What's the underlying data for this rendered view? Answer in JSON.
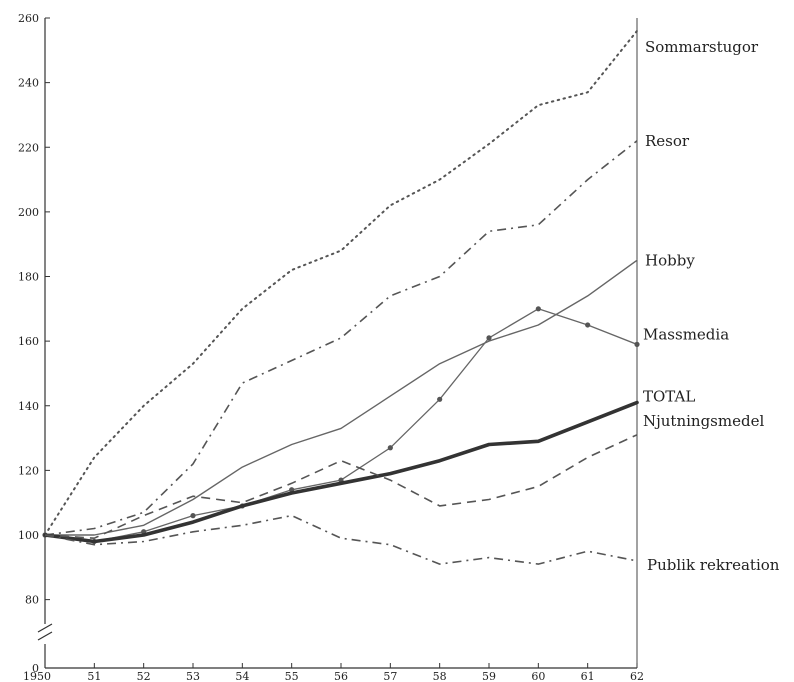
{
  "chart_data": {
    "type": "line",
    "title": "",
    "xlabel": "",
    "ylabel": "",
    "x": [
      1950,
      1951,
      1952,
      1953,
      1954,
      1955,
      1956,
      1957,
      1958,
      1959,
      1960,
      1961,
      1962
    ],
    "x_tick_labels": [
      "1950",
      "51",
      "52",
      "53",
      "54",
      "55",
      "56",
      "57",
      "58",
      "59",
      "60",
      "61",
      "62"
    ],
    "y_ticks": [
      0,
      80,
      100,
      120,
      140,
      160,
      180,
      200,
      220,
      240,
      260
    ],
    "y_tick_labels": [
      "0",
      "80",
      "100",
      "120",
      "140",
      "160",
      "180",
      "200",
      "220",
      "240",
      "260"
    ],
    "ylim": [
      0,
      260
    ],
    "axis_break": "between 0 and 80",
    "grid": false,
    "legend": "labels at right end of lines",
    "series": [
      {
        "name": "Sommarstugor",
        "style": "dotted",
        "values": [
          100,
          124,
          140,
          153,
          170,
          182,
          188,
          202,
          210,
          221,
          233,
          237,
          256
        ]
      },
      {
        "name": "Resor",
        "style": "dash-dot",
        "values": [
          100,
          102,
          107,
          122,
          147,
          154,
          161,
          174,
          180,
          194,
          196,
          210,
          222
        ]
      },
      {
        "name": "Hobby",
        "style": "solid-thin",
        "values": [
          100,
          100,
          103,
          111,
          121,
          128,
          133,
          143,
          153,
          160,
          165,
          174,
          185
        ]
      },
      {
        "name": "Massmedia",
        "style": "solid-markers",
        "values": [
          100,
          98,
          101,
          106,
          109,
          114,
          117,
          127,
          142,
          161,
          170,
          165,
          159
        ]
      },
      {
        "name": "TOTAL",
        "style": "solid-thick",
        "values": [
          100,
          98,
          100,
          104,
          109,
          113,
          116,
          119,
          123,
          128,
          129,
          135,
          141
        ]
      },
      {
        "name": "Njutningsmedel",
        "style": "dashed",
        "values": [
          100,
          99,
          106,
          112,
          110,
          116,
          123,
          117,
          109,
          111,
          115,
          124,
          131
        ]
      },
      {
        "name": "Publik rekreation",
        "style": "dash-dot",
        "values": [
          100,
          97,
          98,
          101,
          103,
          106,
          99,
          97,
          91,
          93,
          91,
          95,
          92
        ]
      }
    ]
  }
}
